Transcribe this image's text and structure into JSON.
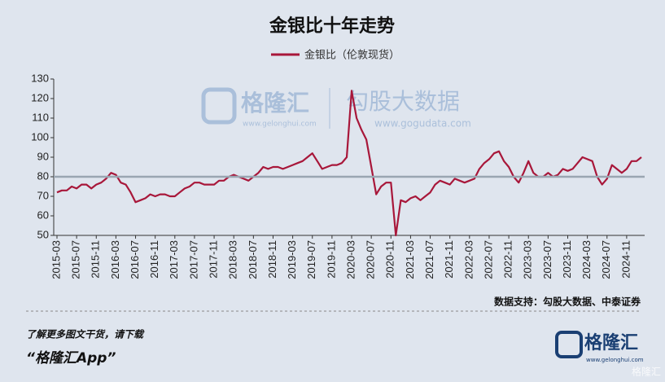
{
  "chart_data": {
    "type": "line",
    "title": "金银比十年走势",
    "categories": [
      "2015-03",
      null,
      null,
      null,
      "2015-07",
      null,
      null,
      null,
      "2015-11",
      null,
      null,
      null,
      "2016-03",
      null,
      null,
      null,
      "2016-07",
      null,
      null,
      null,
      "2016-11",
      null,
      null,
      null,
      "2017-03",
      null,
      null,
      null,
      "2017-07",
      null,
      null,
      null,
      "2017-11",
      null,
      null,
      null,
      "2018-03",
      null,
      null,
      null,
      "2018-07",
      null,
      null,
      null,
      "2018-11",
      null,
      null,
      null,
      "2019-03",
      null,
      null,
      null,
      "2019-07",
      null,
      null,
      null,
      "2019-11",
      null,
      null,
      null,
      "2020-03",
      null,
      null,
      null,
      "2020-07",
      null,
      null,
      null,
      "2020-11",
      null,
      null,
      null,
      "2021-03",
      null,
      null,
      null,
      "2021-07",
      null,
      null,
      null,
      "2021-11",
      null,
      null,
      null,
      "2022-03",
      null,
      null,
      null,
      "2022-07",
      null,
      null,
      null,
      "2022-11",
      null,
      null,
      null,
      "2023-03",
      null,
      null,
      null,
      "2023-07",
      null,
      null,
      null,
      "2023-11",
      null,
      null,
      null,
      "2024-03",
      null,
      null,
      null,
      "2024-07",
      null,
      null,
      null,
      "2024-11",
      null,
      null,
      null
    ],
    "series": [
      {
        "name": "金银比（伦敦现货）",
        "color": "#a8173a",
        "values": [
          72,
          73,
          73,
          75,
          74,
          76,
          76,
          74,
          76,
          77,
          79,
          82,
          81,
          77,
          76,
          72,
          67,
          68,
          69,
          71,
          70,
          71,
          71,
          70,
          70,
          72,
          74,
          75,
          77,
          77,
          76,
          76,
          76,
          78,
          78,
          80,
          81,
          80,
          79,
          78,
          80,
          82,
          85,
          84,
          85,
          85,
          84,
          85,
          86,
          87,
          88,
          90,
          92,
          88,
          84,
          85,
          86,
          86,
          87,
          90,
          124,
          110,
          104,
          99,
          85,
          71,
          75,
          77,
          77,
          50,
          68,
          67,
          69,
          70,
          68,
          70,
          72,
          76,
          78,
          77,
          76,
          79,
          78,
          77,
          78,
          79,
          84,
          87,
          89,
          92,
          93,
          88,
          85,
          80,
          77,
          82,
          88,
          82,
          80,
          80,
          82,
          80,
          81,
          84,
          83,
          84,
          87,
          90,
          89,
          88,
          80,
          76,
          79,
          86,
          84,
          82,
          84,
          88,
          88,
          90
        ]
      }
    ],
    "ylim": [
      50,
      130
    ],
    "yticks": [
      50,
      60,
      70,
      80,
      90,
      100,
      110,
      120,
      130
    ],
    "reference_line": 80,
    "reference_color": "#9aa6b2",
    "source": "数据支持：勾股大数据、中泰证券"
  },
  "watermark": {
    "brand": "格隆汇",
    "brand_url": "www.gelonghui.com",
    "partner": "勾股大数据",
    "partner_url": "www.gogudata.com"
  },
  "footer": {
    "prompt": "了解更多图文干货，请下载",
    "app": "“格隆汇App”",
    "logo": "格隆汇",
    "logo_url": "www.gelonghui.com",
    "corner": "格隆汇"
  }
}
